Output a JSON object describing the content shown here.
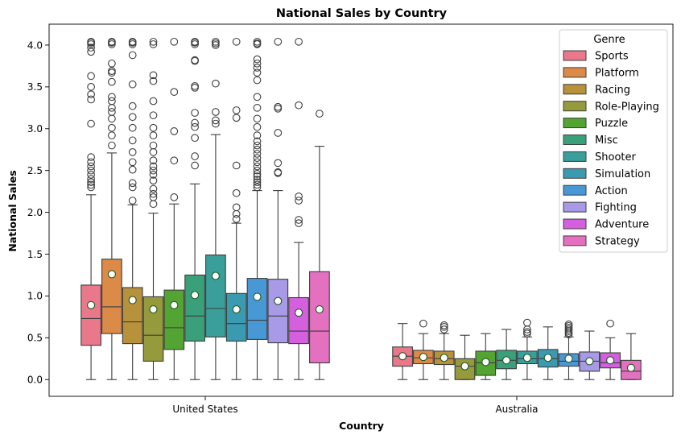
{
  "chart_data": {
    "type": "box",
    "title": "National Sales by Country",
    "xlabel": "Country",
    "ylabel": "National Sales",
    "ylim": [
      -0.2,
      4.25
    ],
    "yticks": [
      "0.0",
      "0.5",
      "1.0",
      "1.5",
      "2.0",
      "2.5",
      "3.0",
      "3.5",
      "4.0"
    ],
    "categories": [
      "United States",
      "Australia"
    ],
    "legend": {
      "title": "Genre",
      "position": "upper-right"
    },
    "mean_marker": {
      "shape": "circle",
      "fill": "#ffffff",
      "edge": "#1e5a1e"
    },
    "series": [
      {
        "name": "Sports",
        "color": "#e8788a",
        "stats": [
          {
            "whisker_low": 0.0,
            "q1": 0.41,
            "median": 0.73,
            "q3": 1.13,
            "whisker_high": 2.21,
            "mean": 0.89,
            "outliers": [
              2.3,
              2.33,
              2.36,
              2.4,
              2.45,
              2.5,
              2.55,
              2.6,
              2.66,
              3.06,
              3.35,
              3.41,
              3.5,
              3.63,
              3.92,
              3.97,
              4.01,
              4.03,
              4.04
            ]
          },
          {
            "whisker_low": 0.0,
            "q1": 0.16,
            "median": 0.28,
            "q3": 0.39,
            "whisker_high": 0.67,
            "mean": 0.28,
            "outliers": []
          }
        ]
      },
      {
        "name": "Platform",
        "color": "#dc8a48",
        "stats": [
          {
            "whisker_low": 0.0,
            "q1": 0.55,
            "median": 0.87,
            "q3": 1.44,
            "whisker_high": 2.71,
            "mean": 1.26,
            "outliers": [
              2.8,
              2.92,
              3.01,
              3.12,
              3.2,
              3.25,
              3.33,
              3.38,
              3.56,
              3.67,
              3.69,
              3.78,
              4.01,
              4.03,
              4.04
            ]
          },
          {
            "whisker_low": 0.0,
            "q1": 0.19,
            "median": 0.26,
            "q3": 0.35,
            "whisker_high": 0.55,
            "mean": 0.27,
            "outliers": [
              0.67
            ]
          }
        ]
      },
      {
        "name": "Racing",
        "color": "#b8923a",
        "stats": [
          {
            "whisker_low": 0.0,
            "q1": 0.43,
            "median": 0.69,
            "q3": 1.1,
            "whisker_high": 2.09,
            "mean": 0.95,
            "outliers": [
              2.14,
              2.3,
              2.35,
              2.51,
              2.6,
              2.72,
              2.86,
              3.01,
              3.14,
              3.27,
              3.53,
              3.88,
              4.01,
              4.03,
              4.04
            ]
          },
          {
            "whisker_low": 0.0,
            "q1": 0.18,
            "median": 0.25,
            "q3": 0.34,
            "whisker_high": 0.55,
            "mean": 0.26,
            "outliers": [
              0.6,
              0.63,
              0.65
            ]
          }
        ]
      },
      {
        "name": "Role-Playing",
        "color": "#959a3c",
        "stats": [
          {
            "whisker_low": 0.0,
            "q1": 0.22,
            "median": 0.53,
            "q3": 0.99,
            "whisker_high": 1.99,
            "mean": 0.84,
            "outliers": [
              2.1,
              2.18,
              2.22,
              2.28,
              2.38,
              2.45,
              2.5,
              2.55,
              2.62,
              2.72,
              2.8,
              2.92,
              3.01,
              3.16,
              3.33,
              3.57,
              3.64,
              4.01,
              4.04
            ]
          },
          {
            "whisker_low": 0.0,
            "q1": 0.0,
            "median": 0.16,
            "q3": 0.25,
            "whisker_high": 0.53,
            "mean": 0.16,
            "outliers": []
          }
        ]
      },
      {
        "name": "Puzzle",
        "color": "#53a432",
        "stats": [
          {
            "whisker_low": 0.0,
            "q1": 0.36,
            "median": 0.62,
            "q3": 1.07,
            "whisker_high": 2.1,
            "mean": 0.89,
            "outliers": [
              2.18,
              2.62,
              2.97,
              3.44,
              4.04
            ]
          },
          {
            "whisker_low": 0.0,
            "q1": 0.05,
            "median": 0.2,
            "q3": 0.34,
            "whisker_high": 0.55,
            "mean": 0.21,
            "outliers": []
          }
        ]
      },
      {
        "name": "Misc",
        "color": "#3aa07a",
        "stats": [
          {
            "whisker_low": 0.0,
            "q1": 0.46,
            "median": 0.76,
            "q3": 1.25,
            "whisker_high": 2.34,
            "mean": 1.01,
            "outliers": [
              2.56,
              2.67,
              2.89,
              3.02,
              3.07,
              3.19,
              3.49,
              3.51,
              3.81,
              3.82,
              4.01,
              4.03,
              4.04
            ]
          },
          {
            "whisker_low": 0.0,
            "q1": 0.13,
            "median": 0.23,
            "q3": 0.35,
            "whisker_high": 0.6,
            "mean": 0.23,
            "outliers": []
          }
        ]
      },
      {
        "name": "Shooter",
        "color": "#3a9e9a",
        "stats": [
          {
            "whisker_low": 0.0,
            "q1": 0.51,
            "median": 0.85,
            "q3": 1.49,
            "whisker_high": 2.93,
            "mean": 1.24,
            "outliers": [
              3.06,
              3.1,
              3.2,
              3.54,
              4.0,
              4.02,
              4.04
            ]
          },
          {
            "whisker_low": 0.0,
            "q1": 0.19,
            "median": 0.25,
            "q3": 0.34,
            "whisker_high": 0.51,
            "mean": 0.26,
            "outliers": [
              0.55,
              0.57,
              0.6,
              0.68
            ]
          }
        ]
      },
      {
        "name": "Simulation",
        "color": "#3a9ab0",
        "stats": [
          {
            "whisker_low": 0.0,
            "q1": 0.46,
            "median": 0.67,
            "q3": 1.03,
            "whisker_high": 1.87,
            "mean": 0.84,
            "outliers": [
              1.92,
              1.98,
              2.06,
              2.23,
              2.56,
              3.13,
              3.22,
              4.04
            ]
          },
          {
            "whisker_low": 0.0,
            "q1": 0.15,
            "median": 0.25,
            "q3": 0.36,
            "whisker_high": 0.63,
            "mean": 0.26,
            "outliers": []
          }
        ]
      },
      {
        "name": "Action",
        "color": "#4898d6",
        "stats": [
          {
            "whisker_low": 0.0,
            "q1": 0.48,
            "median": 0.71,
            "q3": 1.21,
            "whisker_high": 2.26,
            "mean": 0.99,
            "outliers": [
              2.3,
              2.33,
              2.36,
              2.39,
              2.43,
              2.46,
              2.5,
              2.55,
              2.6,
              2.65,
              2.7,
              2.75,
              2.8,
              2.85,
              2.92,
              3.02,
              3.12,
              3.25,
              3.38,
              3.58,
              3.67,
              3.73,
              3.78,
              3.83,
              4.01,
              4.02,
              4.04
            ]
          },
          {
            "whisker_low": 0.0,
            "q1": 0.16,
            "median": 0.22,
            "q3": 0.31,
            "whisker_high": 0.51,
            "mean": 0.25,
            "outliers": [
              0.54,
              0.56,
              0.58,
              0.6,
              0.62,
              0.64,
              0.66
            ]
          }
        ]
      },
      {
        "name": "Fighting",
        "color": "#a89ae6",
        "stats": [
          {
            "whisker_low": 0.0,
            "q1": 0.44,
            "median": 0.76,
            "q3": 1.2,
            "whisker_high": 2.26,
            "mean": 0.94,
            "outliers": [
              2.47,
              2.48,
              2.59,
              2.95,
              3.24,
              3.26,
              4.04
            ]
          },
          {
            "whisker_low": 0.0,
            "q1": 0.1,
            "median": 0.22,
            "q3": 0.33,
            "whisker_high": 0.58,
            "mean": 0.22,
            "outliers": []
          }
        ]
      },
      {
        "name": "Adventure",
        "color": "#d460e0",
        "stats": [
          {
            "whisker_low": 0.0,
            "q1": 0.43,
            "median": 0.58,
            "q3": 0.98,
            "whisker_high": 1.64,
            "mean": 0.8,
            "outliers": [
              1.87,
              1.91,
              2.14,
              2.19,
              3.28,
              4.04
            ]
          },
          {
            "whisker_low": 0.0,
            "q1": 0.14,
            "median": 0.2,
            "q3": 0.32,
            "whisker_high": 0.5,
            "mean": 0.23,
            "outliers": [
              0.67
            ]
          }
        ]
      },
      {
        "name": "Strategy",
        "color": "#e470c0",
        "stats": [
          {
            "whisker_low": 0.0,
            "q1": 0.2,
            "median": 0.58,
            "q3": 1.29,
            "whisker_high": 2.79,
            "mean": 0.84,
            "outliers": [
              3.18
            ]
          },
          {
            "whisker_low": 0.0,
            "q1": 0.0,
            "median": 0.1,
            "q3": 0.23,
            "whisker_high": 0.55,
            "mean": 0.14,
            "outliers": []
          }
        ]
      }
    ]
  }
}
